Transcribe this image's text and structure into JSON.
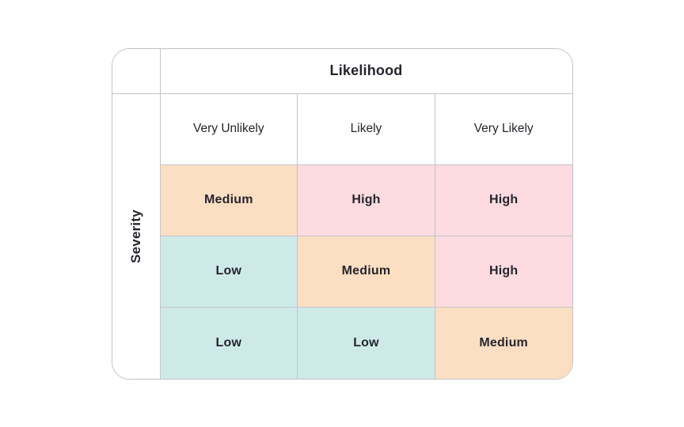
{
  "chart_data": {
    "type": "heatmap",
    "title": "",
    "x_axis_label": "Likelihood",
    "y_axis_label": "Severity",
    "x_categories": [
      "Very Unlikely",
      "Likely",
      "Very Likely"
    ],
    "values": [
      [
        "Medium",
        "High",
        "High"
      ],
      [
        "Low",
        "Medium",
        "High"
      ],
      [
        "Low",
        "Low",
        "Medium"
      ]
    ],
    "cell_colors": {
      "Low": "#CDEAE9",
      "Medium": "#FCDFC2",
      "High": "#FDDBE0"
    },
    "grid": true,
    "legend": false
  },
  "matrix": {
    "col_group_header": "Likelihood",
    "row_group_header": "Severity",
    "column_headers": [
      "Very Unlikely",
      "Likely",
      "Very Likely"
    ],
    "rows": [
      {
        "cells": [
          {
            "label": "Medium",
            "level": "medium"
          },
          {
            "label": "High",
            "level": "high"
          },
          {
            "label": "High",
            "level": "high"
          }
        ]
      },
      {
        "cells": [
          {
            "label": "Low",
            "level": "low"
          },
          {
            "label": "Medium",
            "level": "medium"
          },
          {
            "label": "High",
            "level": "high"
          }
        ]
      },
      {
        "cells": [
          {
            "label": "Low",
            "level": "low"
          },
          {
            "label": "Low",
            "level": "low"
          },
          {
            "label": "Medium",
            "level": "medium"
          }
        ]
      }
    ],
    "colors": {
      "low": "#CDEAE9",
      "medium": "#FCDFC2",
      "high": "#FDDBE0",
      "border": "#C3C3C8",
      "text": "#25252E",
      "background": "#FFFFFF"
    }
  }
}
